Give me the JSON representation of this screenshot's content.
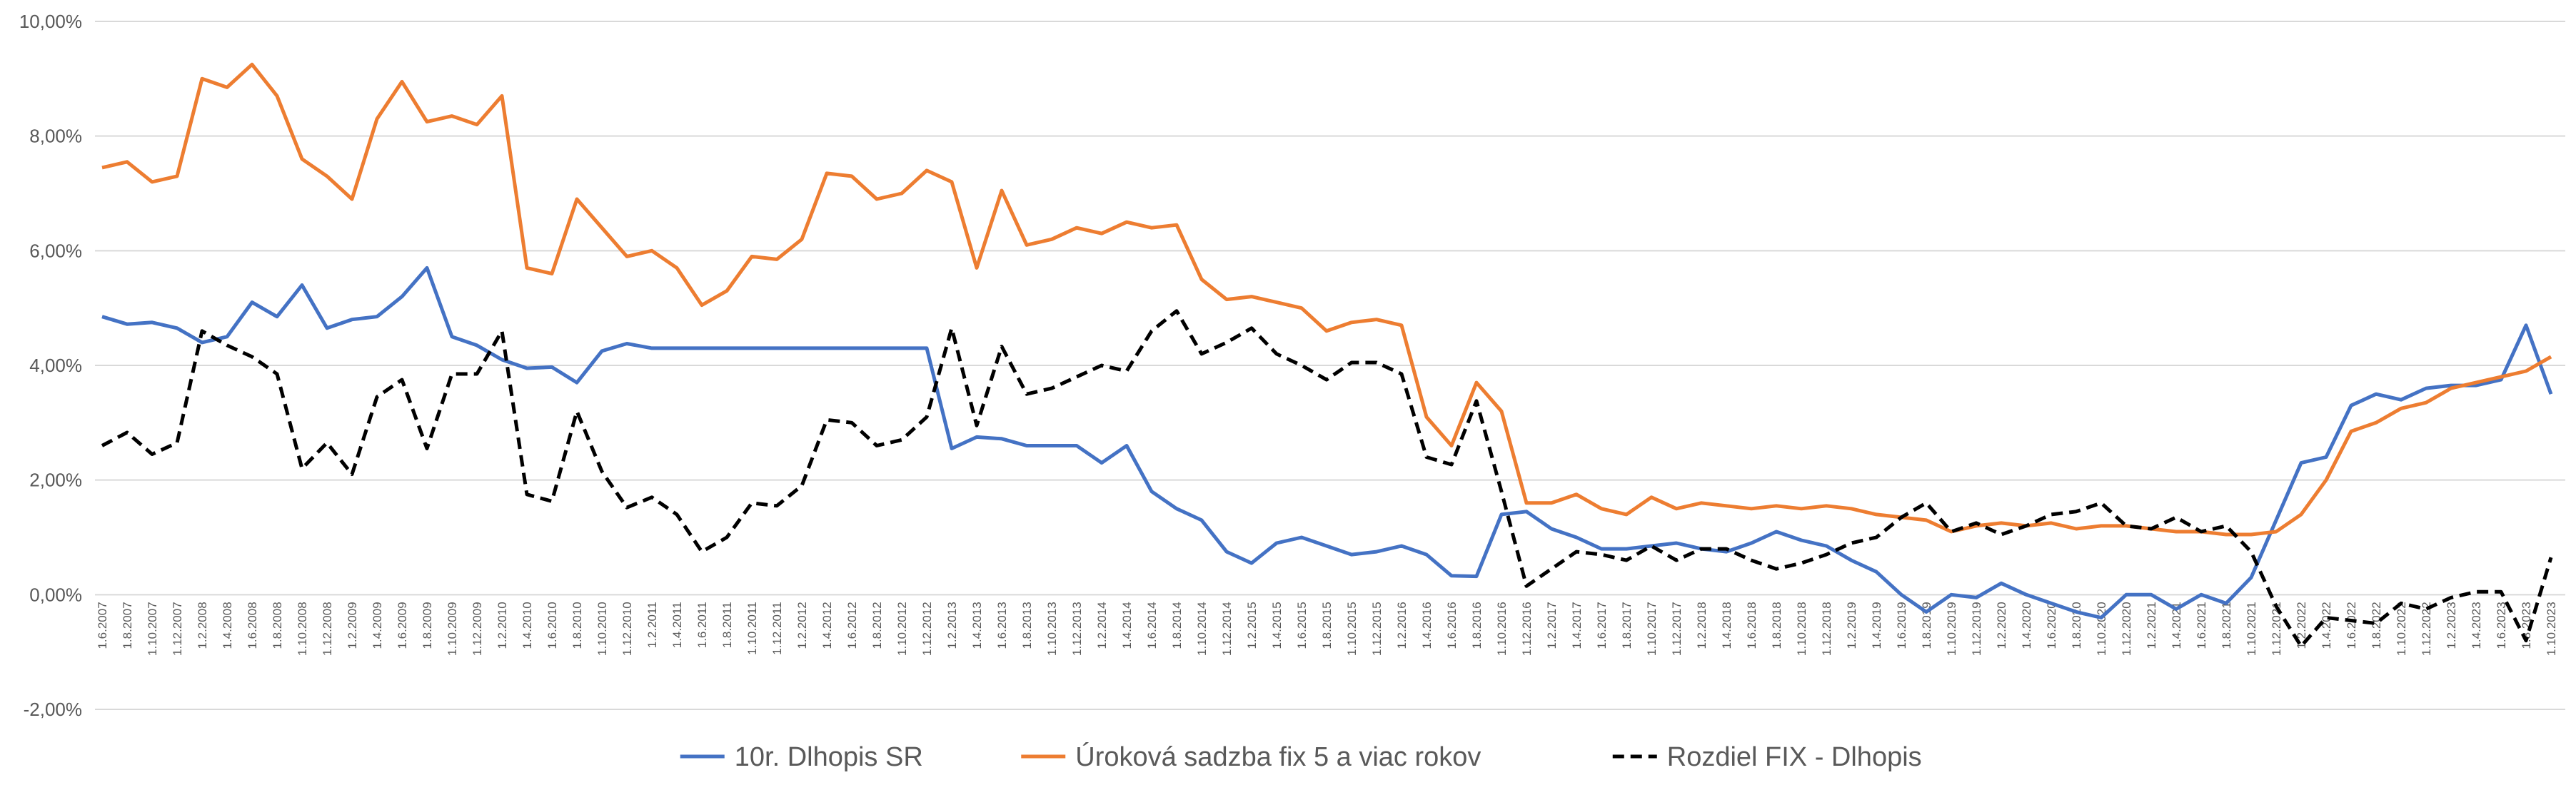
{
  "chart_data": {
    "type": "line",
    "categories": [
      "1.6.2007",
      "1.8.2007",
      "1.10.2007",
      "1.12.2007",
      "1.2.2008",
      "1.4.2008",
      "1.6.2008",
      "1.8.2008",
      "1.10.2008",
      "1.12.2008",
      "1.2.2009",
      "1.4.2009",
      "1.6.2009",
      "1.8.2009",
      "1.10.2009",
      "1.12.2009",
      "1.2.2010",
      "1.4.2010",
      "1.6.2010",
      "1.8.2010",
      "1.10.2010",
      "1.12.2010",
      "1.2.2011",
      "1.4.2011",
      "1.6.2011",
      "1.8.2011",
      "1.10.2011",
      "1.12.2011",
      "1.2.2012",
      "1.4.2012",
      "1.6.2012",
      "1.8.2012",
      "1.10.2012",
      "1.12.2012",
      "1.2.2013",
      "1.4.2013",
      "1.6.2013",
      "1.8.2013",
      "1.10.2013",
      "1.12.2013",
      "1.2.2014",
      "1.4.2014",
      "1.6.2014",
      "1.8.2014",
      "1.10.2014",
      "1.12.2014",
      "1.2.2015",
      "1.4.2015",
      "1.6.2015",
      "1.8.2015",
      "1.10.2015",
      "1.12.2015",
      "1.2.2016",
      "1.4.2016",
      "1.6.2016",
      "1.8.2016",
      "1.10.2016",
      "1.12.2016",
      "1.2.2017",
      "1.4.2017",
      "1.6.2017",
      "1.8.2017",
      "1.10.2017",
      "1.12.2017",
      "1.2.2018",
      "1.4.2018",
      "1.6.2018",
      "1.8.2018",
      "1.10.2018",
      "1.12.2018",
      "1.2.2019",
      "1.4.2019",
      "1.6.2019",
      "1.8.2019",
      "1.10.2019",
      "1.12.2019",
      "1.2.2020",
      "1.4.2020",
      "1.6.2020",
      "1.8.2020",
      "1.10.2020",
      "1.12.2020",
      "1.2.2021",
      "1.4.2021",
      "1.6.2021",
      "1.8.2021",
      "1.10.2021",
      "1.12.2021",
      "1.2.2022",
      "1.4.2022",
      "1.6.2022",
      "1.8.2022",
      "1.10.2022",
      "1.12.2022",
      "1.2.2023",
      "1.4.2023",
      "1.6.2023",
      "1.8.2023",
      "1.10.2023"
    ],
    "series": [
      {
        "name": "10r. Dlhopis SR",
        "color": "#4472c4",
        "dash": false,
        "values": [
          4.85,
          4.72,
          4.75,
          4.65,
          4.4,
          4.5,
          5.1,
          4.85,
          5.4,
          4.65,
          4.8,
          4.85,
          5.2,
          5.7,
          4.5,
          4.35,
          4.1,
          3.95,
          3.97,
          3.7,
          4.25,
          4.38,
          4.3,
          4.3,
          4.3,
          4.3,
          4.3,
          4.3,
          4.3,
          4.3,
          4.3,
          4.3,
          4.3,
          4.3,
          2.55,
          2.75,
          2.72,
          2.6,
          2.6,
          2.6,
          2.3,
          2.6,
          1.8,
          1.5,
          1.3,
          0.75,
          0.55,
          0.9,
          1.0,
          0.85,
          0.7,
          0.75,
          0.85,
          0.7,
          0.33,
          0.32,
          1.4,
          1.45,
          1.15,
          1.0,
          0.8,
          0.8,
          0.85,
          0.9,
          0.8,
          0.75,
          0.9,
          1.1,
          0.95,
          0.85,
          0.6,
          0.4,
          0.0,
          -0.3,
          0.0,
          -0.05,
          0.2,
          0.0,
          -0.15,
          -0.3,
          -0.4,
          0.0,
          0.0,
          -0.25,
          0.0,
          -0.15,
          0.3,
          1.3,
          2.3,
          2.4,
          3.3,
          3.5,
          3.4,
          3.6,
          3.65,
          3.65,
          3.75,
          4.7,
          3.5
        ]
      },
      {
        "name": "Úroková sadzba fix 5 a viac rokov",
        "color": "#ed7d31",
        "dash": false,
        "values": [
          7.45,
          7.55,
          7.2,
          7.3,
          9.0,
          8.85,
          9.25,
          8.7,
          7.6,
          7.3,
          6.9,
          8.3,
          8.95,
          8.25,
          8.35,
          8.2,
          8.7,
          5.7,
          5.6,
          6.9,
          6.4,
          5.9,
          6.0,
          5.7,
          5.05,
          5.3,
          5.9,
          5.85,
          6.2,
          7.35,
          7.3,
          6.9,
          7.0,
          7.4,
          7.2,
          5.7,
          7.05,
          6.1,
          6.2,
          6.4,
          6.3,
          6.5,
          6.4,
          6.45,
          5.5,
          5.15,
          5.2,
          5.1,
          5.0,
          4.6,
          4.75,
          4.8,
          4.7,
          3.1,
          2.6,
          3.7,
          3.2,
          1.6,
          1.6,
          1.75,
          1.5,
          1.4,
          1.7,
          1.5,
          1.6,
          1.55,
          1.5,
          1.55,
          1.5,
          1.55,
          1.5,
          1.4,
          1.35,
          1.3,
          1.1,
          1.2,
          1.25,
          1.2,
          1.25,
          1.15,
          1.2,
          1.2,
          1.15,
          1.1,
          1.1,
          1.05,
          1.05,
          1.1,
          1.4,
          2.0,
          2.85,
          3.0,
          3.25,
          3.35,
          3.6,
          3.7,
          3.8,
          3.9,
          4.15
        ]
      },
      {
        "name": "Rozdiel FIX - Dlhopis",
        "color": "#000000",
        "dash": true,
        "values": [
          2.6,
          2.83,
          2.45,
          2.65,
          4.6,
          4.35,
          4.15,
          3.85,
          2.2,
          2.65,
          2.1,
          3.45,
          3.75,
          2.55,
          3.85,
          3.85,
          4.6,
          1.75,
          1.63,
          3.2,
          2.15,
          1.52,
          1.7,
          1.4,
          0.75,
          1.0,
          1.6,
          1.55,
          1.9,
          3.05,
          3.0,
          2.6,
          2.7,
          3.1,
          4.65,
          2.95,
          4.33,
          3.5,
          3.6,
          3.8,
          4.0,
          3.9,
          4.6,
          4.95,
          4.2,
          4.4,
          4.65,
          4.2,
          4.0,
          3.75,
          4.05,
          4.05,
          3.85,
          2.4,
          2.27,
          3.38,
          1.8,
          0.15,
          0.45,
          0.75,
          0.7,
          0.6,
          0.85,
          0.6,
          0.8,
          0.8,
          0.6,
          0.45,
          0.55,
          0.7,
          0.9,
          1.0,
          1.35,
          1.6,
          1.1,
          1.25,
          1.05,
          1.2,
          1.4,
          1.45,
          1.6,
          1.2,
          1.15,
          1.35,
          1.1,
          1.2,
          0.75,
          -0.2,
          -0.9,
          -0.4,
          -0.45,
          -0.5,
          -0.15,
          -0.25,
          -0.05,
          0.05,
          0.05,
          -0.8,
          0.65
        ]
      }
    ],
    "ylim": [
      -2,
      10
    ],
    "yticks": [
      {
        "value": -2,
        "label": "-2,00%"
      },
      {
        "value": 0,
        "label": "0,00%"
      },
      {
        "value": 2,
        "label": "2,00%"
      },
      {
        "value": 4,
        "label": "4,00%"
      },
      {
        "value": 6,
        "label": "6,00%"
      },
      {
        "value": 8,
        "label": "8,00%"
      },
      {
        "value": 10,
        "label": "10,00%"
      }
    ],
    "grid": true,
    "legend": "bottom"
  }
}
